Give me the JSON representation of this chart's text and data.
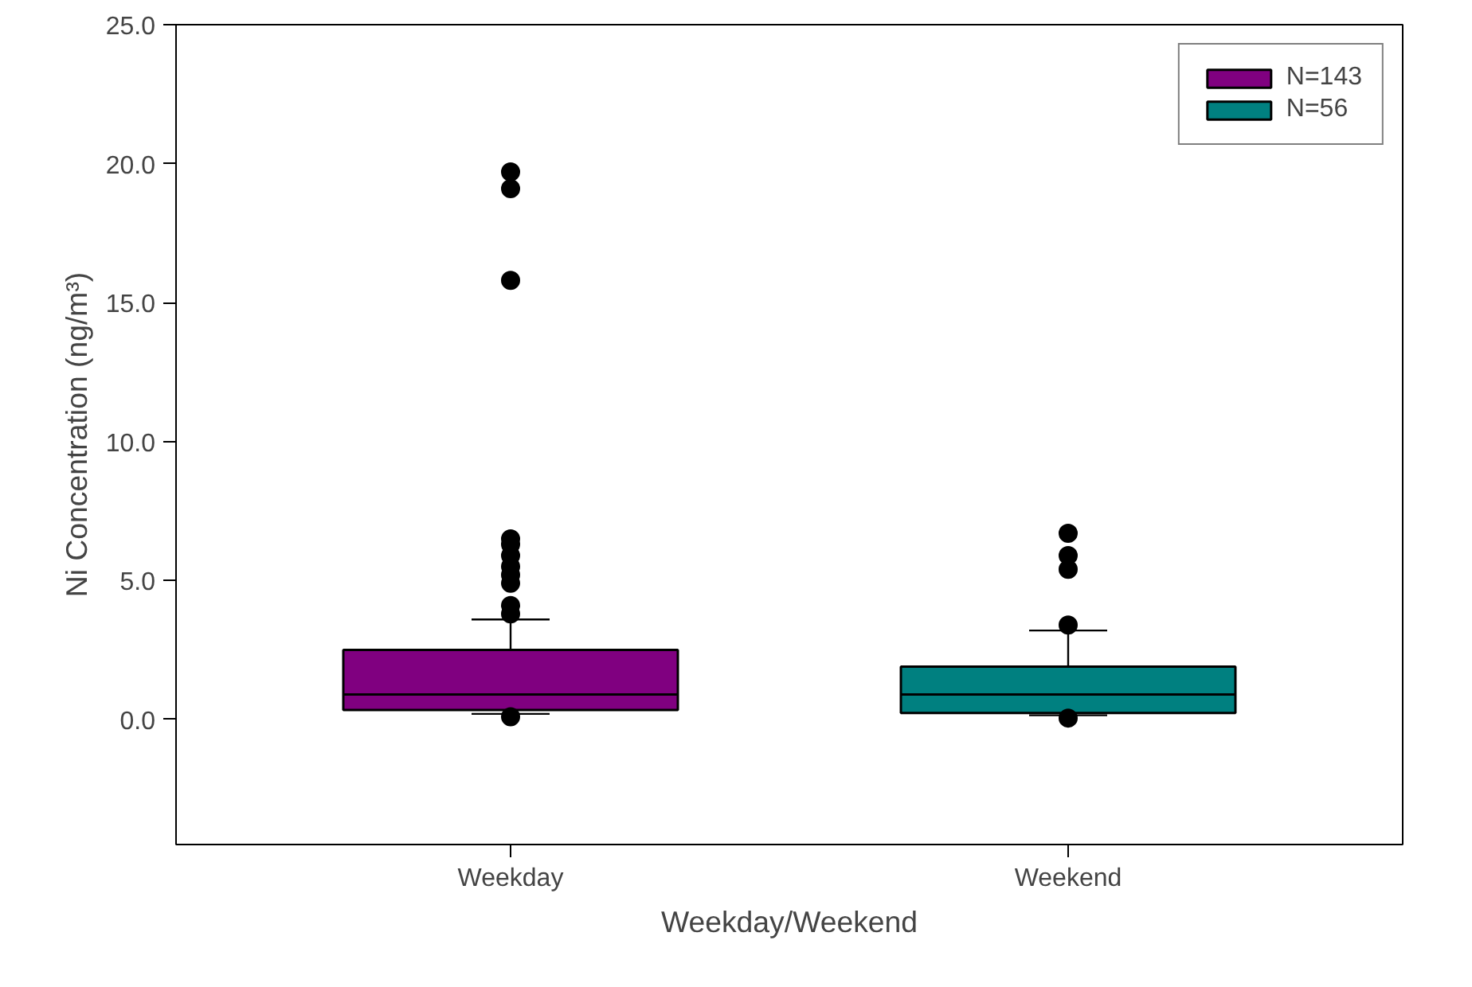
{
  "chart_data": {
    "type": "box",
    "xlabel": "Weekday/Weekend",
    "ylabel": "Ni Concentration (ng/m³)",
    "categories": [
      "Weekday",
      "Weekend"
    ],
    "series": [
      {
        "name": "N=143",
        "color": "#800080",
        "boxes": [
          {
            "low": 0.2,
            "q1": 0.34,
            "median": 0.9,
            "q3": 2.5,
            "high": 3.6,
            "outliers": [
              19.7,
              19.1,
              15.8,
              6.5,
              6.3,
              5.9,
              5.5,
              5.2,
              4.9,
              4.1,
              3.8,
              0.1
            ]
          },
          null
        ]
      },
      {
        "name": "N=56",
        "color": "#008080",
        "boxes": [
          null,
          {
            "low": 0.15,
            "q1": 0.23,
            "median": 0.9,
            "q3": 1.9,
            "high": 3.2,
            "outliers": [
              6.7,
              5.9,
              5.4,
              3.4,
              0.05
            ]
          }
        ]
      }
    ],
    "ylim": [
      -4.5,
      25
    ],
    "yticks": [
      {
        "value": 0,
        "label": "0.0"
      },
      {
        "value": 5,
        "label": "5.0"
      },
      {
        "value": 10,
        "label": "10.0"
      },
      {
        "value": 15,
        "label": "15.0"
      },
      {
        "value": 20,
        "label": "20.0"
      },
      {
        "value": 25,
        "label": "25.0"
      }
    ],
    "grid": false,
    "legend": "top right",
    "marker": "circle"
  }
}
